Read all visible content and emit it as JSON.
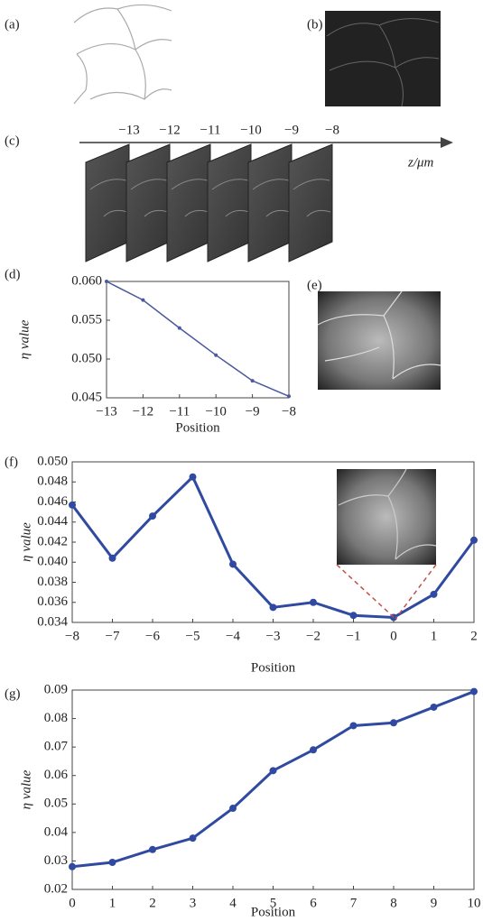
{
  "panel_labels": [
    "(a)",
    "(b)",
    "(c)",
    "(d)",
    "(e)",
    "(f)",
    "(g)"
  ],
  "stage_axis": {
    "label": "z/μm",
    "ticks": [
      {
        "value": -13,
        "label": "−13"
      },
      {
        "value": -12,
        "label": "−12"
      },
      {
        "value": -11,
        "label": "−11"
      },
      {
        "value": -10,
        "label": "−10"
      },
      {
        "value": -9,
        "label": "−9"
      },
      {
        "value": -8,
        "label": "−8"
      }
    ]
  },
  "chart_data": [
    {
      "type": "line",
      "ylabel": "η value",
      "xlabel": "Position",
      "color": "#4a5a9c",
      "x": [
        -13,
        -12,
        -11,
        -10,
        -9,
        -8
      ],
      "values": [
        0.06,
        0.0576,
        0.054,
        0.0505,
        0.0472,
        0.0452
      ],
      "xlim": [
        -13,
        -8
      ],
      "ylim": [
        0.045,
        0.06
      ],
      "xticks": [
        {
          "value": -13,
          "label": "−13"
        },
        {
          "value": -12,
          "label": "−12"
        },
        {
          "value": -11,
          "label": "−11"
        },
        {
          "value": -10,
          "label": "−10"
        },
        {
          "value": -9,
          "label": "−9"
        },
        {
          "value": -8,
          "label": "−8"
        }
      ],
      "yticks": [
        {
          "value": 0.045,
          "label": "0.045"
        },
        {
          "value": 0.05,
          "label": "0.050"
        },
        {
          "value": 0.055,
          "label": "0.055"
        },
        {
          "value": 0.06,
          "label": "0.060"
        }
      ]
    },
    {
      "type": "line",
      "ylabel": "η value",
      "xlabel": "Position",
      "color": "#2f4aa0",
      "x": [
        -8,
        -7,
        -6,
        -5,
        -4,
        -3,
        -2,
        -1,
        0,
        1,
        2
      ],
      "values": [
        0.0457,
        0.0404,
        0.0446,
        0.0485,
        0.0398,
        0.0355,
        0.036,
        0.0347,
        0.0345,
        0.0368,
        0.0422
      ],
      "xlim": [
        -8,
        2
      ],
      "ylim": [
        0.034,
        0.05
      ],
      "xticks": [
        {
          "value": -8,
          "label": "−8"
        },
        {
          "value": -7,
          "label": "−7"
        },
        {
          "value": -6,
          "label": "−6"
        },
        {
          "value": -5,
          "label": "−5"
        },
        {
          "value": -4,
          "label": "−4"
        },
        {
          "value": -3,
          "label": "−3"
        },
        {
          "value": -2,
          "label": "−2"
        },
        {
          "value": -1,
          "label": "−1"
        },
        0,
        1,
        2
      ],
      "yticks": [
        0.034,
        0.036,
        0.038,
        {
          "value": 0.04,
          "label": "0.040"
        },
        0.042,
        0.044,
        0.046,
        0.048,
        {
          "value": 0.05,
          "label": "0.050"
        }
      ]
    },
    {
      "type": "line",
      "ylabel": "η value",
      "xlabel": "Position",
      "color": "#2f4aa0",
      "x": [
        0,
        1,
        2,
        3,
        4,
        5,
        6,
        7,
        8,
        9,
        10
      ],
      "values": [
        0.028,
        0.0295,
        0.034,
        0.038,
        0.0485,
        0.0617,
        0.069,
        0.0775,
        0.0785,
        0.084,
        0.0895
      ],
      "xlim": [
        0,
        10
      ],
      "ylim": [
        0.02,
        0.09
      ],
      "xticks": [
        0,
        1,
        2,
        3,
        4,
        5,
        6,
        7,
        8,
        9,
        10
      ],
      "yticks": [
        0.02,
        0.03,
        0.04,
        0.05,
        0.06,
        0.07,
        0.08,
        0.09
      ]
    }
  ]
}
